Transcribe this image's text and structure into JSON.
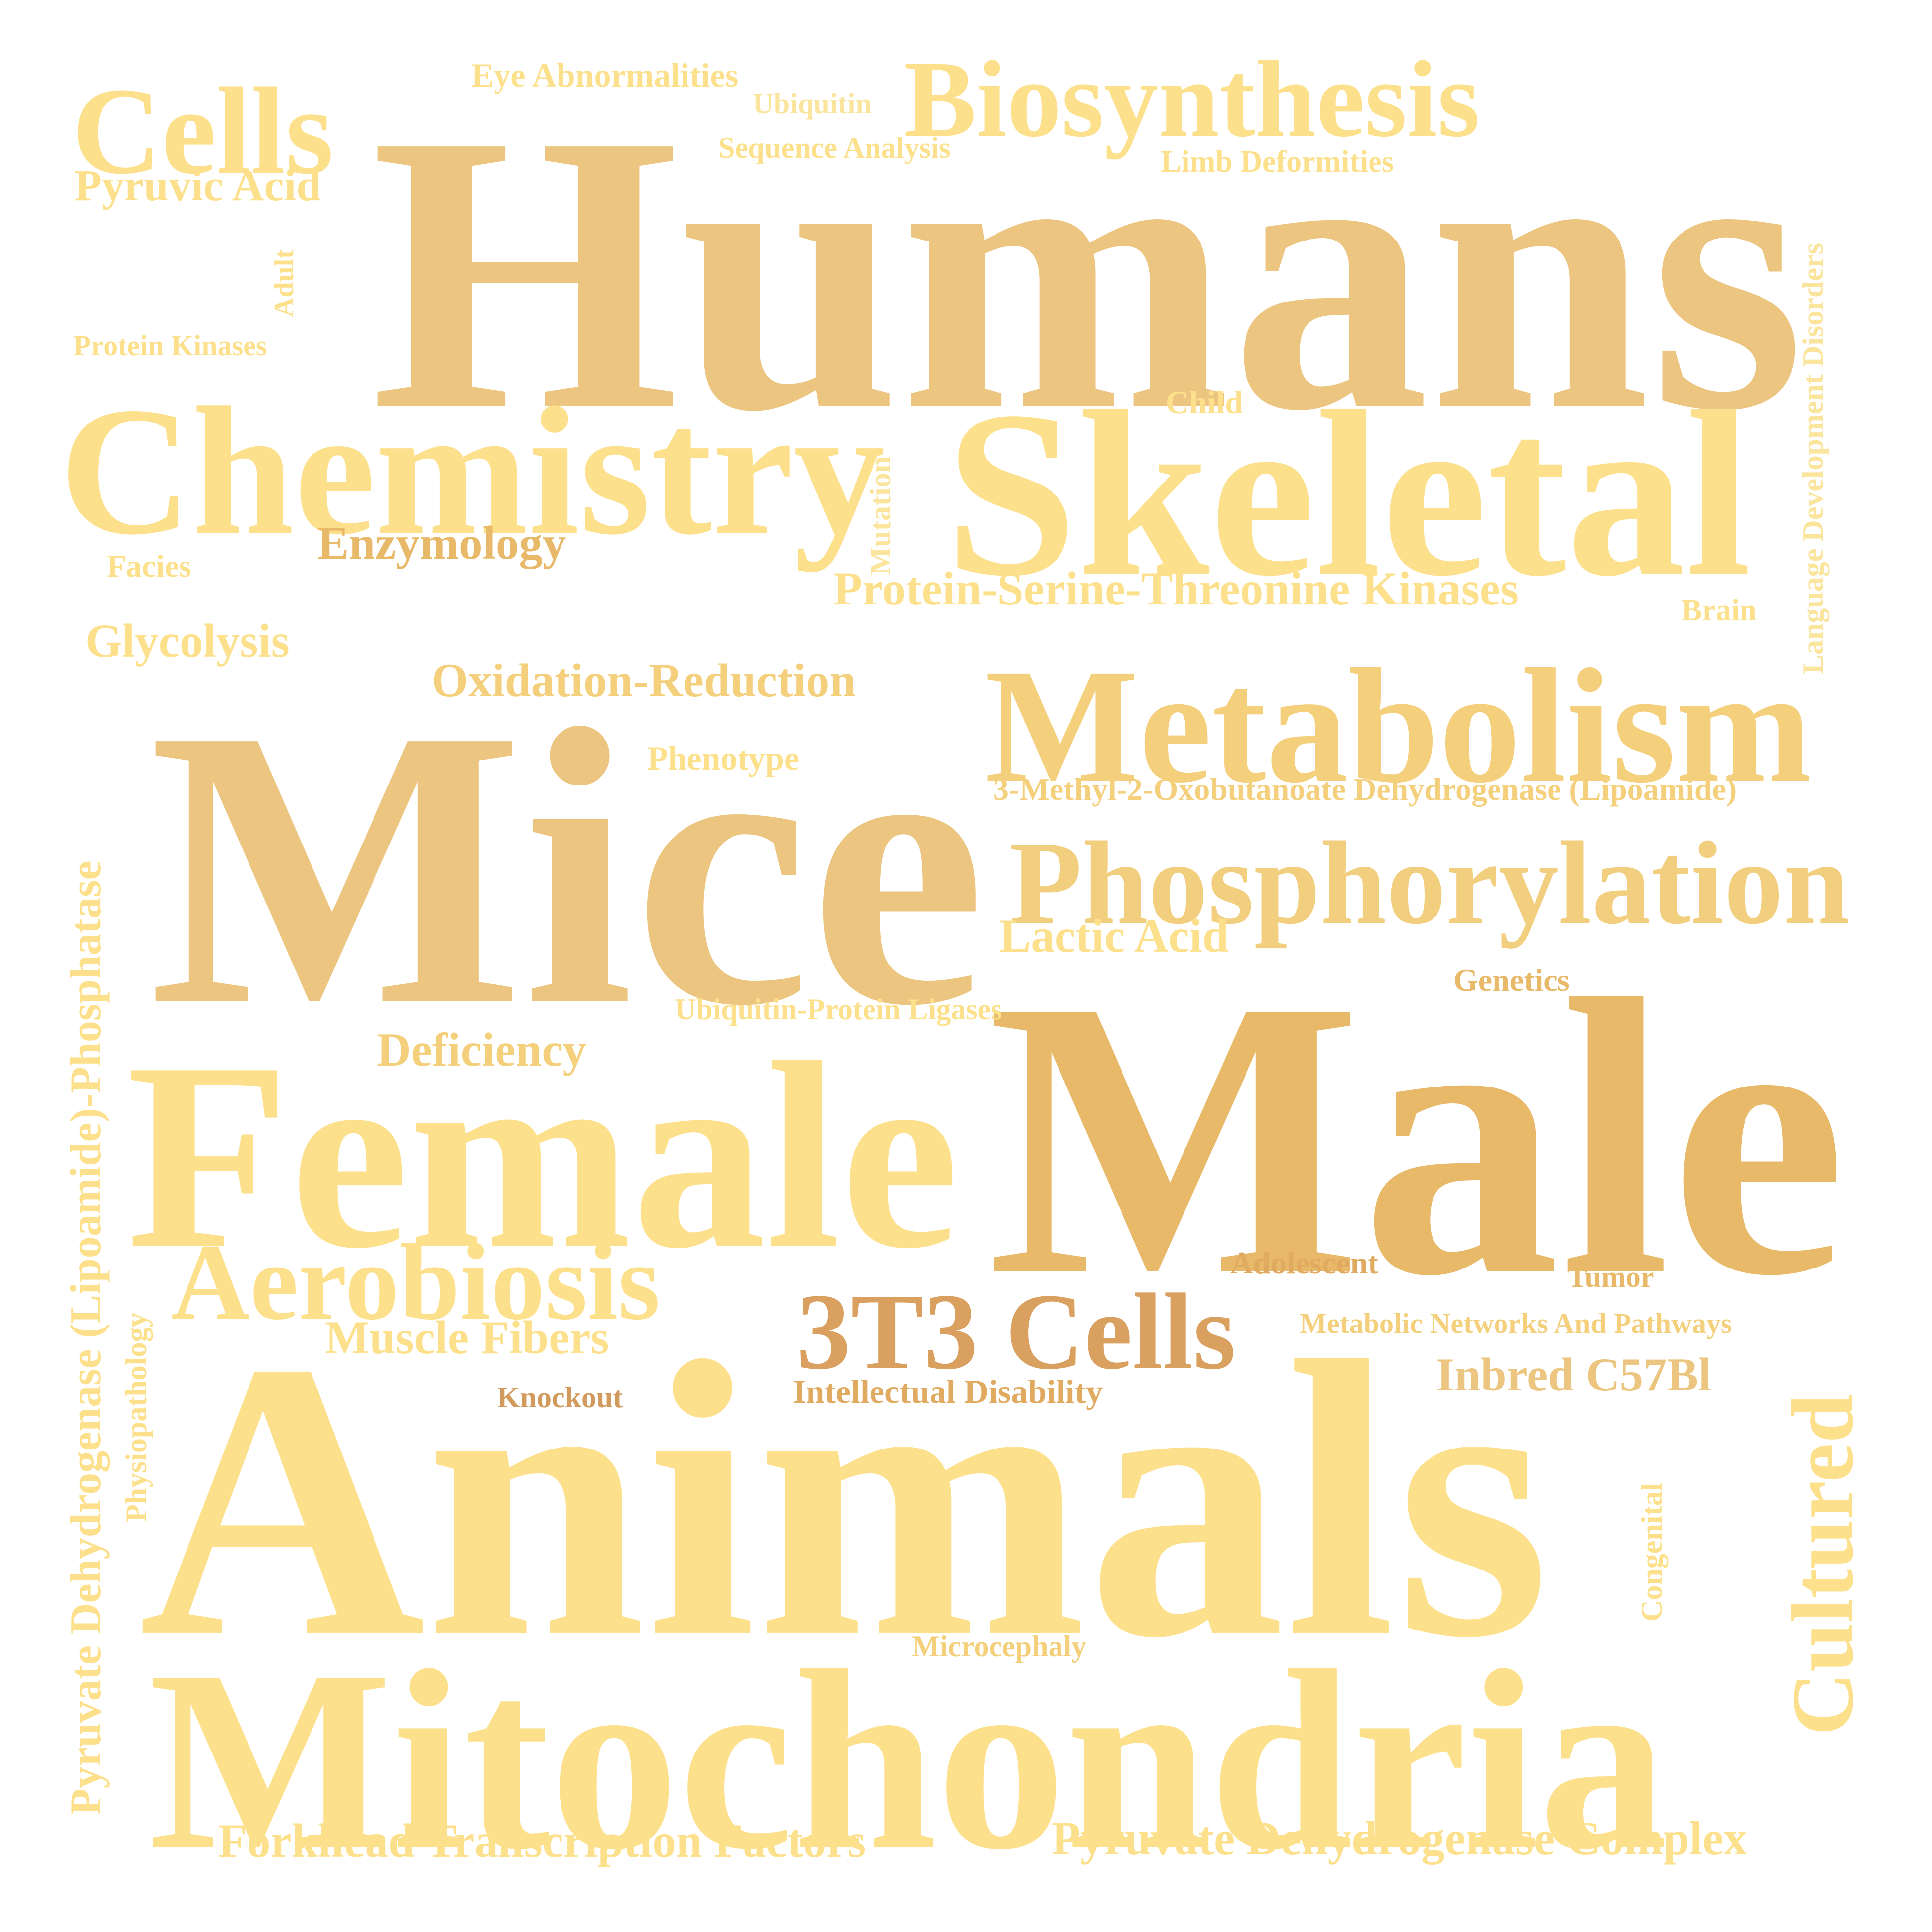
{
  "palette": {
    "light": "#fde08c",
    "pale": "#fbe49c",
    "mid": "#f4cf7c",
    "tan": "#ecc680",
    "gold": "#e8b969",
    "brown": "#d9a05f",
    "rust": "#d39a5e"
  },
  "words": [
    {
      "key": "humans",
      "text": "Humans",
      "color": "#ecc680"
    },
    {
      "key": "mice",
      "text": "Mice",
      "color": "#ecc680"
    },
    {
      "key": "male",
      "text": "Male",
      "color": "#e8b969"
    },
    {
      "key": "animals",
      "text": "Animals",
      "color": "#fde08c"
    },
    {
      "key": "female",
      "text": "Female",
      "color": "#fde08c"
    },
    {
      "key": "mitochondria",
      "text": "Mitochondria",
      "color": "#fde08c"
    },
    {
      "key": "skeletal",
      "text": "Skeletal",
      "color": "#fde08c"
    },
    {
      "key": "chemistry",
      "text": "Chemistry",
      "color": "#fde08c"
    },
    {
      "key": "metabolism",
      "text": "Metabolism",
      "color": "#f4cf7c"
    },
    {
      "key": "phosphorylation",
      "text": "Phosphorylation",
      "color": "#f2cf7e"
    },
    {
      "key": "cells",
      "text": "Cells",
      "color": "#fde08c"
    },
    {
      "key": "biosynthesis",
      "text": "Biosynthesis",
      "color": "#fde08c"
    },
    {
      "key": "aerobiosis",
      "text": "Aerobiosis",
      "color": "#fde08c"
    },
    {
      "key": "3t3_cells",
      "text": "3T3 Cells",
      "color": "#d9a05f"
    },
    {
      "key": "cultured",
      "text": "Cultured",
      "color": "#fde08c"
    },
    {
      "key": "pyruvate_phosphatase",
      "text": "Pyruvate Dehydrogenase (Lipoamide)-Phosphatase",
      "color": "#fde08c"
    },
    {
      "key": "language_disorders",
      "text": "Language Development Disorders",
      "color": "#fbe49c"
    },
    {
      "key": "pyruvic_acid",
      "text": "Pyruvic Acid",
      "color": "#fde08c"
    },
    {
      "key": "eye_abnormalities",
      "text": "Eye Abnormalities",
      "color": "#fde08c"
    },
    {
      "key": "ubiquitin",
      "text": "Ubiquitin",
      "color": "#fbe49c"
    },
    {
      "key": "sequence_analysis",
      "text": "Sequence Analysis",
      "color": "#fde08c"
    },
    {
      "key": "limb_deformities",
      "text": "Limb Deformities",
      "color": "#fde08c"
    },
    {
      "key": "adult",
      "text": "Adult",
      "color": "#fde08c"
    },
    {
      "key": "protein_kinases",
      "text": "Protein Kinases",
      "color": "#fde08c"
    },
    {
      "key": "child",
      "text": "Child",
      "color": "#fde08c"
    },
    {
      "key": "mutation",
      "text": "Mutation",
      "color": "#fbe49c"
    },
    {
      "key": "enzymology",
      "text": "Enzymology",
      "color": "#e8b969"
    },
    {
      "key": "facies",
      "text": "Facies",
      "color": "#fde08c"
    },
    {
      "key": "pstk",
      "text": "Protein-Serine-Threonine Kinases",
      "color": "#fde08c"
    },
    {
      "key": "brain",
      "text": "Brain",
      "color": "#fde08c"
    },
    {
      "key": "glycolysis",
      "text": "Glycolysis",
      "color": "#fde08c"
    },
    {
      "key": "oxidation_reduction",
      "text": "Oxidation-Reduction",
      "color": "#f4cf7c"
    },
    {
      "key": "phenotype",
      "text": "Phenotype",
      "color": "#fde08c"
    },
    {
      "key": "mod_lipoamide",
      "text": "3-Methyl-2-Oxobutanoate Dehydrogenase (Lipoamide)",
      "color": "#f4cf7c"
    },
    {
      "key": "lactic_acid",
      "text": "Lactic Acid",
      "color": "#fde08c"
    },
    {
      "key": "genetics",
      "text": "Genetics",
      "color": "#e8b969"
    },
    {
      "key": "ubiquitin_ligases",
      "text": "Ubiquitin-Protein Ligases",
      "color": "#fde08c"
    },
    {
      "key": "deficiency",
      "text": "Deficiency",
      "color": "#f4cf7c"
    },
    {
      "key": "adolescent",
      "text": "Adolescent",
      "color": "#e0aa60"
    },
    {
      "key": "tumor",
      "text": "Tumor",
      "color": "#e8b969"
    },
    {
      "key": "physiopathology",
      "text": "Physiopathology",
      "color": "#fde08c"
    },
    {
      "key": "metabolic_networks",
      "text": "Metabolic Networks And Pathways",
      "color": "#f4cf7c"
    },
    {
      "key": "muscle_fibers",
      "text": "Muscle Fibers",
      "color": "#fde08c"
    },
    {
      "key": "knockout",
      "text": "Knockout",
      "color": "#d39a5e"
    },
    {
      "key": "intellectual_disability",
      "text": "Intellectual Disability",
      "color": "#e0aa60"
    },
    {
      "key": "inbred_c57bl",
      "text": "Inbred C57Bl",
      "color": "#ecc680"
    },
    {
      "key": "congenital",
      "text": "Congenital",
      "color": "#fde08c"
    },
    {
      "key": "microcephaly",
      "text": "Microcephaly",
      "color": "#f4cf7c"
    },
    {
      "key": "forkhead",
      "text": "Forkhead Transcription Factors",
      "color": "#fde08c"
    },
    {
      "key": "pdh_complex",
      "text": "Pyruvate Dehydrogenase Complex",
      "color": "#fde08c"
    }
  ]
}
